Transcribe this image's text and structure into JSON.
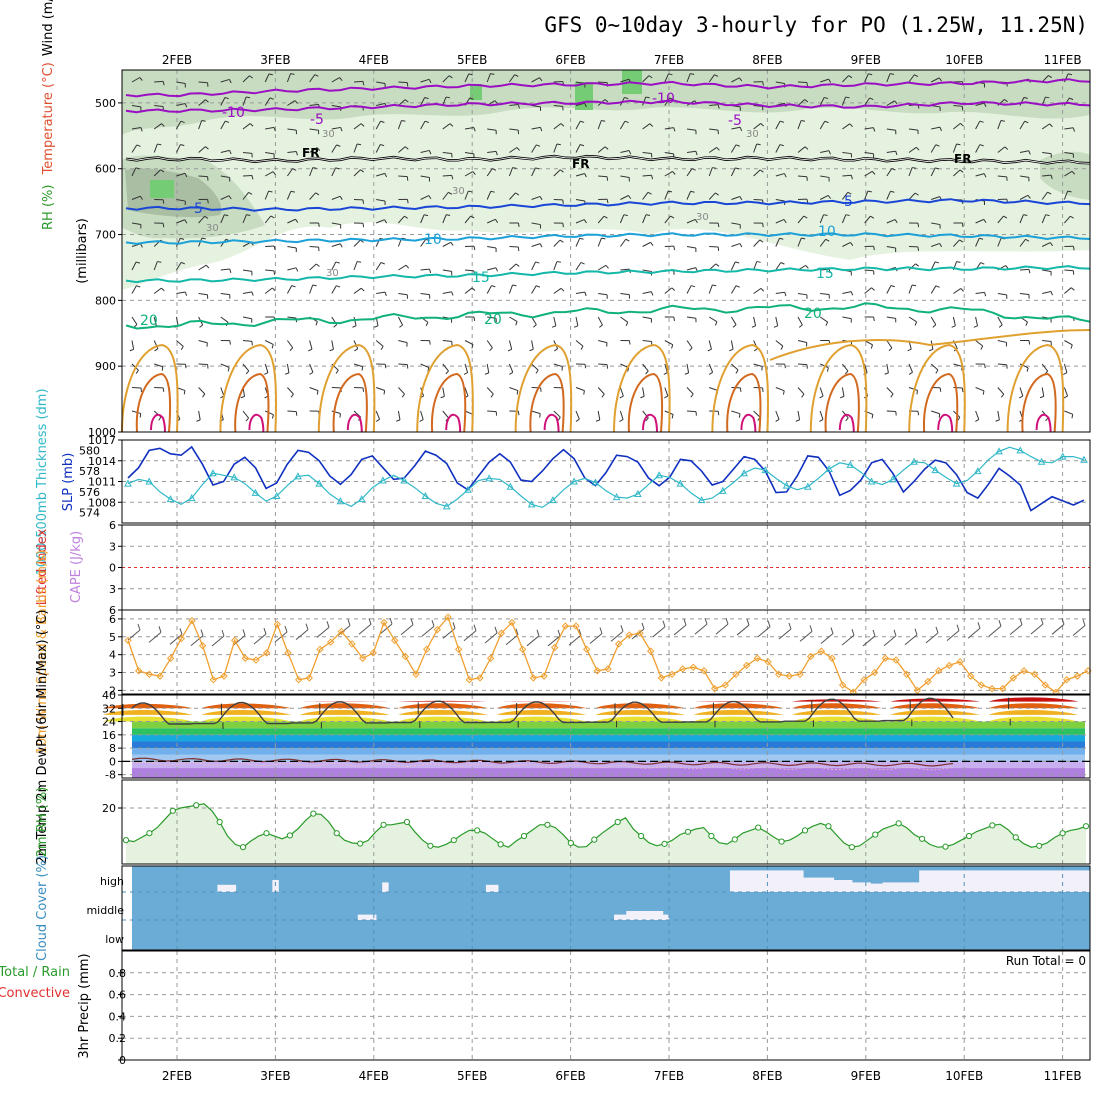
{
  "header": {
    "title": "GFS 0~10day 3-hourly for PO (1.25W, 11.25N)"
  },
  "dates": [
    "2FEB",
    "3FEB",
    "4FEB",
    "5FEB",
    "6FEB",
    "7FEB",
    "8FEB",
    "9FEB",
    "10FEB",
    "11FEB"
  ],
  "run_total": "Run Total = 0",
  "colors": {
    "rh_light": "#e6f2e0",
    "rh_mid": "#c7dcc0",
    "rh_dark": "#a9bea3",
    "rh_green": "#74cc74",
    "purple": "#9b0fc4",
    "freeze": "#000000",
    "blue": "#1946d6",
    "lightblue": "#1ca0d8",
    "teal": "#13b8a8",
    "green": "#10b27a",
    "orange": "#e0a030",
    "darkorange": "#d2691e",
    "magenta": "#d0107a",
    "slp": "#1030c0",
    "thickness": "#30b8c8",
    "wind10": "#f0a030",
    "rh2m": "#2a9a2a",
    "cloud": "#6aacd6"
  },
  "chart_data": [
    {
      "type": "contour",
      "name": "upper_air",
      "ylabel_parts": [
        "RH (%)",
        "Temperature (°C)",
        "Wind (m/s)"
      ],
      "ylabel": "(millibars)",
      "yticks": [
        500,
        600,
        700,
        800,
        900,
        1000
      ],
      "ylim": [
        1000,
        450
      ],
      "contour_labels": {
        "minus10": "-10",
        "minus5": "-5",
        "fr": "FR",
        "plus5": "5",
        "plus10": "10",
        "plus15": "15",
        "plus20": "20",
        "rh30": "30"
      },
      "temperature_levels_mb": {
        "minus10": [
          488,
          482,
          478,
          474,
          472,
          470,
          476,
          472,
          470,
          466
        ],
        "minus5": [
          512,
          510,
          506,
          502,
          500,
          498,
          504,
          506,
          500,
          502
        ],
        "freezing": [
          585,
          588,
          584,
          586,
          582,
          585,
          584,
          586,
          588,
          590
        ],
        "plus5": [
          660,
          662,
          660,
          658,
          655,
          652,
          652,
          650,
          648,
          652
        ],
        "plus10": [
          712,
          710,
          708,
          706,
          702,
          700,
          700,
          700,
          702,
          705
        ],
        "plus15": [
          770,
          768,
          764,
          762,
          758,
          756,
          754,
          752,
          752,
          750
        ],
        "plus20": [
          838,
          832,
          828,
          822,
          818,
          814,
          812,
          810,
          815,
          830
        ]
      }
    },
    {
      "type": "line",
      "name": "slp_thickness",
      "ylabel_left": "1000-500mb Thickness (dm)",
      "ylabel_right": "SLP (mb)",
      "yticks_left": [
        574,
        576,
        578,
        580
      ],
      "yticks_right": [
        1008,
        1011,
        1014,
        1017
      ],
      "ylim_right": [
        1005,
        1017
      ],
      "slp_mb": [
        1011.5,
        1013,
        1015.5,
        1015.8,
        1015,
        1014.8,
        1016,
        1013.5,
        1010.5,
        1011,
        1013.5,
        1014.5,
        1013,
        1010,
        1010.8,
        1013.5,
        1015.5,
        1015.2,
        1014,
        1011.8,
        1010.6,
        1012,
        1014.2,
        1014.7,
        1013,
        1011.3,
        1011.5,
        1013.3,
        1015.4,
        1014.8,
        1013.6,
        1010.8,
        1009.8,
        1011.8,
        1013.8,
        1015,
        1013.8,
        1011.2,
        1011,
        1012.5,
        1014.3,
        1015.6,
        1014.3,
        1011.5,
        1010.4,
        1012.3,
        1014.8,
        1014.6,
        1013.8,
        1011.5,
        1010.4,
        1011.6,
        1014.2,
        1014,
        1012.5,
        1010.5,
        1011,
        1012.8,
        1014.6,
        1014.2,
        1012.5,
        1009.4,
        1009.5,
        1011.8,
        1014.7,
        1014.5,
        1012.5,
        1009,
        1009.7,
        1011.2,
        1013.7,
        1014.2,
        1012.2,
        1009.5,
        1011,
        1012.8,
        1014.1,
        1013.7,
        1012,
        1009.4,
        1008.6,
        1010.6,
        1012.9,
        1011.8,
        1010.5,
        1006.8,
        1007.8,
        1008.8,
        1008.2,
        1007.6,
        1008.3
      ],
      "thickness_dm": [
        576.8,
        577.2,
        577,
        576,
        575.3,
        574.8,
        575.4,
        576.7,
        577.8,
        577.6,
        577.4,
        576.8,
        575.9,
        575.1,
        575.6,
        576.6,
        577.5,
        577.6,
        576.8,
        575.8,
        575.1,
        574.6,
        575.3,
        576.4,
        577.1,
        577.6,
        577.1,
        576.4,
        575.6,
        574.9,
        574.6,
        575.3,
        576.2,
        577.1,
        577.3,
        577.2,
        576.5,
        575.6,
        574.8,
        574.5,
        575.2,
        576.2,
        577,
        577.3,
        576.9,
        576.1,
        575.5,
        575.4,
        575.8,
        576.7,
        577.6,
        577.4,
        576.8,
        575.9,
        575.2,
        575.4,
        576.1,
        576.9,
        577.8,
        578.3,
        578.1,
        577.3,
        576.6,
        576.2,
        576.5,
        577.3,
        578.2,
        578.8,
        578.6,
        577.9,
        577,
        576.7,
        577.2,
        578.1,
        578.9,
        578.8,
        578.1,
        577.4,
        576.8,
        577.1,
        578,
        579.1,
        579.9,
        580.3,
        580,
        579.4,
        578.9,
        578.8,
        579.4,
        579.4,
        579.1
      ]
    },
    {
      "type": "line",
      "name": "cape_li",
      "ylabel_left": "CAPE (J/kg)",
      "ylabel_right": "Lifted Index",
      "yticks": [
        6,
        3,
        0,
        -3,
        -6
      ],
      "ylim": [
        -6,
        6
      ],
      "lifted_index": 0
    },
    {
      "type": "line",
      "name": "wind10m",
      "ylabel": "10m Wind Speed & Barbs (m/s)",
      "yticks": [
        2,
        3,
        4,
        5,
        6
      ],
      "ylim": [
        1.8,
        6.5
      ],
      "values": [
        4.8,
        3.1,
        2.9,
        2.8,
        3.8,
        4.9,
        5.9,
        4.5,
        2.6,
        2.8,
        4.8,
        3.8,
        3.7,
        4.1,
        5.7,
        4.1,
        2.6,
        2.7,
        4.3,
        4.7,
        5.3,
        4.6,
        3.8,
        4.1,
        5.8,
        4.8,
        3.9,
        2.9,
        4.3,
        5.4,
        6.1,
        4.3,
        2.6,
        2.7,
        3.8,
        5.2,
        5.8,
        4.3,
        2.7,
        2.8,
        4.4,
        5.6,
        5.6,
        4.3,
        3.1,
        3.2,
        4.6,
        5.1,
        5.2,
        4.2,
        2.7,
        2.9,
        3.2,
        3.3,
        3.1,
        2.1,
        2.3,
        2.9,
        3.4,
        3.8,
        3.6,
        2.9,
        2.8,
        2.9,
        3.9,
        4.2,
        3.8,
        2.3,
        1.9,
        2.6,
        3,
        3.8,
        3.7,
        2.9,
        2,
        2.5,
        3.1,
        3.4,
        3.6,
        2.8,
        2.3,
        2.1,
        2.1,
        2.7,
        3.1,
        2.9,
        2.3,
        1.9,
        2.6,
        2.8,
        3.1
      ]
    },
    {
      "type": "area",
      "name": "temp2m",
      "ylabel": "2m Temp 2m DewPt (6hr Min/Max) (°C)",
      "yticks": [
        40,
        32,
        24,
        16,
        8,
        0,
        -8
      ],
      "ylim": [
        -10,
        40
      ],
      "temperature_daily_max": [
        35.5,
        35.8,
        36.2,
        36.6,
        36.2,
        36.0,
        36.4,
        37.8,
        38.4,
        39.4
      ],
      "temperature_daily_min": [
        22.5,
        22.8,
        23.2,
        23.4,
        23.5,
        23.6,
        23.8,
        24.2,
        24.6,
        24.8
      ],
      "dewpoint_values": [
        1.2,
        0.8,
        0.5,
        0.2,
        -0.2,
        -0.6,
        -1.2,
        -1.6,
        -1.8,
        -2.0
      ]
    },
    {
      "type": "line",
      "name": "rh2m",
      "ylabel": "2m RH (%)",
      "yticks": [
        20
      ],
      "ylim": [
        0,
        30
      ],
      "values": [
        8.5,
        8,
        9.5,
        11,
        13,
        16,
        19,
        20,
        20.5,
        21,
        21.5,
        19,
        15,
        10,
        7,
        6,
        8.2,
        10,
        11,
        10,
        9,
        10.2,
        12.5,
        15.5,
        18,
        17.7,
        15,
        11,
        8.5,
        7.5,
        7.3,
        8.4,
        11.5,
        14,
        14,
        14.5,
        15,
        11.5,
        8.5,
        6.5,
        6,
        7,
        8.5,
        10.5,
        12,
        12,
        11,
        9,
        7,
        6,
        8.2,
        10,
        12,
        14,
        14,
        13,
        10.5,
        7.5,
        6,
        6.2,
        8.7,
        11,
        13,
        15,
        16.5,
        12.5,
        10,
        7.6,
        6.5,
        7.2,
        8.5,
        10.5,
        11.5,
        12.5,
        13,
        10,
        7.6,
        7.1,
        8.8,
        11,
        12,
        13,
        11.5,
        9.6,
        8,
        8.5,
        10,
        12,
        13.5,
        14.5,
        13.5,
        10.5,
        7.5,
        6,
        6.5,
        8.5,
        10.5,
        12.5,
        13.5,
        14.5,
        13,
        10.5,
        9,
        7,
        6,
        6.2,
        7,
        8.5,
        10,
        11.6,
        12.6,
        13.8,
        14.2,
        12.3,
        9.5,
        7.3,
        6,
        6.5,
        7.5,
        9.5,
        11,
        12,
        12.5,
        13.5
      ]
    },
    {
      "type": "bar",
      "name": "cloud_cover",
      "ylabel": "Cloud Cover (%)",
      "levels": [
        "high",
        "middle",
        "low"
      ],
      "high_cover": [
        0,
        0,
        0,
        0,
        0,
        0,
        0,
        0,
        0,
        0,
        0,
        0,
        0,
        0,
        0.3,
        0.3,
        0.3,
        0,
        0,
        0,
        0,
        0,
        0,
        0.5,
        0,
        0,
        0,
        0,
        0,
        0,
        0,
        0,
        0,
        0,
        0,
        0,
        0,
        0,
        0,
        0,
        0,
        0.4,
        0,
        0,
        0,
        0,
        0,
        0,
        0,
        0,
        0,
        0,
        0,
        0,
        0,
        0,
        0,
        0,
        0.3,
        0.3,
        0,
        0,
        0,
        0,
        0,
        0,
        0,
        0,
        0,
        0,
        0,
        0,
        0,
        0,
        0,
        0,
        0,
        0,
        0,
        0,
        0,
        0,
        0,
        0,
        0,
        0,
        0,
        0,
        0,
        0,
        0,
        0,
        0,
        0,
        0,
        0,
        0,
        0,
        0.9,
        0.9,
        0.9,
        0.9,
        0.9,
        0.9,
        0.9,
        0.9,
        0.9,
        0.9,
        0.9,
        0.9,
        0.6,
        0.6,
        0.6,
        0.6,
        0.6,
        0.5,
        0.5,
        0.5,
        0.4,
        0.4,
        0.4,
        0.35,
        0.35,
        0.4,
        0.4,
        0.4,
        0.4,
        0.4,
        0.4,
        0.9,
        0.9,
        0.9,
        0.9,
        0.9,
        0.9,
        0.9,
        0.9,
        0.9,
        0.9,
        0.9,
        0.9,
        0.9,
        0.9,
        0.9,
        0.9,
        0.9,
        0.9,
        0.9,
        0.9,
        0.9,
        0.9,
        0.9,
        0.9,
        0.9,
        0.9,
        0.9,
        0.9
      ],
      "middle_cover": [
        0,
        0,
        0,
        0,
        0,
        0,
        0,
        0,
        0,
        0,
        0,
        0,
        0,
        0,
        0,
        0,
        0,
        0,
        0,
        0,
        0,
        0,
        0,
        0,
        0,
        0,
        0,
        0,
        0,
        0,
        0,
        0,
        0,
        0,
        0,
        0,
        0,
        0.3,
        0.3,
        0.3,
        0,
        0,
        0,
        0,
        0,
        0,
        0,
        0,
        0,
        0,
        0,
        0,
        0,
        0,
        0,
        0,
        0,
        0,
        0,
        0,
        0,
        0,
        0,
        0,
        0,
        0,
        0,
        0,
        0,
        0,
        0,
        0,
        0,
        0,
        0,
        0,
        0,
        0,
        0,
        0.3,
        0.3,
        0.5,
        0.5,
        0.5,
        0.5,
        0.5,
        0.5,
        0.3,
        0,
        0,
        0,
        0,
        0,
        0,
        0,
        0,
        0,
        0,
        0,
        0,
        0,
        0,
        0,
        0,
        0,
        0,
        0,
        0,
        0,
        0,
        0,
        0,
        0,
        0,
        0,
        0,
        0,
        0,
        0,
        0,
        0,
        0,
        0,
        0,
        0,
        0,
        0,
        0,
        0,
        0,
        0,
        0,
        0,
        0,
        0,
        0,
        0,
        0,
        0,
        0,
        0,
        0,
        0,
        0,
        0,
        0,
        0,
        0,
        0,
        0,
        0,
        0,
        0,
        0,
        0,
        0,
        0
      ],
      "note": "cloud fractions read approximately; gaps rendered as white blocks"
    },
    {
      "type": "bar",
      "name": "precip",
      "ylabel": "3hr Precip (mm)",
      "ylabel_extra": [
        "Total / Rain",
        "Convective"
      ],
      "yticks": [
        0,
        0.2,
        0.4,
        0.6,
        0.8
      ],
      "ylim": [
        0,
        1.0
      ],
      "values": [
        0,
        0,
        0,
        0,
        0,
        0,
        0,
        0,
        0,
        0
      ]
    }
  ]
}
